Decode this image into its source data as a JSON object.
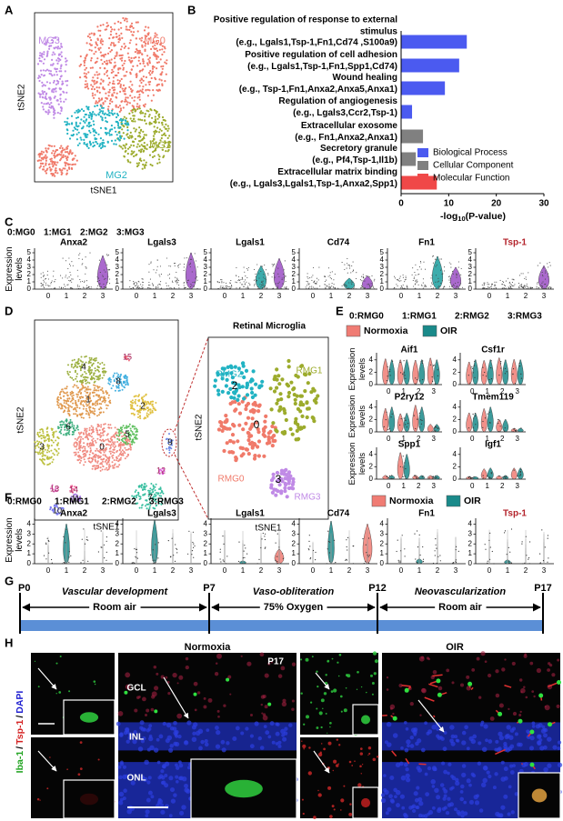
{
  "panel_labels": [
    "A",
    "B",
    "C",
    "D",
    "E",
    "F",
    "G",
    "H"
  ],
  "panel_a": {
    "clusters": [
      "MG0",
      "MG1",
      "MG2",
      "MG3"
    ],
    "colors": [
      "#f07a6a",
      "#9cab2c",
      "#22b3c3",
      "#c08ae6"
    ],
    "x_label": "tSNE1",
    "y_label": "tSNE2"
  },
  "panel_b": {
    "chart_data": {
      "type": "bar",
      "orientation": "horizontal",
      "categories": [
        "Positive regulation of response to external stimulus",
        "Positive regulation of cell adhesion",
        "Wound healing",
        "Regulation of angiogenesis",
        "Extracellular exosome",
        "Secretory granule",
        "Extracellular matrix binding"
      ],
      "examples": [
        "(e.g., Lgals1,Tsp-1,Fn1,Cd74 ,S100a9)",
        "(e.g., Lgals1,Tsp-1,Fn1,Spp1,Cd74)",
        "(e.g., Tsp-1,Fn1,Anxa2,Anxa5,Anxa1)",
        "(e.g., Lgals3,Ccr2,Tsp-1)",
        "(e.g., Fn1,Anxa2,Anxa1)",
        "(e.g., Pf4,Tsp-1,Il1b)",
        "(e.g., Lgals3,Lgals1,Tsp-1,Anxa2,Spp1)"
      ],
      "values": [
        13.8,
        12.2,
        9.2,
        2.3,
        4.6,
        3.1,
        7.5
      ],
      "colors": [
        "#4b5af0",
        "#4b5af0",
        "#4b5af0",
        "#4b5af0",
        "#808080",
        "#808080",
        "#f04848"
      ],
      "xlim": [
        0,
        30
      ],
      "xticks": [
        0,
        10,
        20,
        30
      ],
      "x_label": [
        "-log",
        "10",
        "(P-value)"
      ],
      "legend": [
        {
          "name": "Biological Process",
          "color": "#4b5af0"
        },
        {
          "name": "Cellular Component",
          "color": "#808080"
        },
        {
          "name": "Molecular Function",
          "color": "#f04848"
        }
      ]
    }
  },
  "panel_c": {
    "cluster_key": [
      "0:MG0",
      "1:MG1",
      "2:MG2",
      "3:MG3"
    ],
    "y_label": [
      "Expression",
      "levels"
    ],
    "genes": [
      "Anxa2",
      "Lgals3",
      "Lgals1",
      "Cd74",
      "Fn1",
      "Tsp-1"
    ],
    "gene_colors": [
      "#000",
      "#000",
      "#000",
      "#000",
      "#000",
      "#b3222a"
    ],
    "groups": [
      "0",
      "1",
      "2",
      "3"
    ],
    "ylim": [
      0,
      5.5
    ],
    "yticks": [
      0,
      1,
      2,
      3,
      4,
      5
    ]
  },
  "panel_d": {
    "clusters": [
      "0",
      "1",
      "2",
      "3",
      "4",
      "5",
      "6",
      "7",
      "8",
      "9",
      "10",
      "11",
      "12",
      "13",
      "14",
      "15"
    ],
    "x_label": "tSNE1",
    "y_label": "tSNE2",
    "zoom_title": "Retinal Microglia",
    "zoom_clusters": [
      "RMG0",
      "RMG1",
      "RMG2",
      "RMG3"
    ],
    "zoom_colors": [
      "#f07a6a",
      "#9cab2c",
      "#22b3c3",
      "#c08ae6"
    ],
    "zoom_numbers": [
      "0",
      "2",
      "3"
    ]
  },
  "panel_e": {
    "cluster_key": [
      "0:RMG0",
      "1:RMG1",
      "2:RMG2",
      "3:RMG3"
    ],
    "conditions": [
      {
        "name": "Normoxia",
        "color": "#f07c74"
      },
      {
        "name": "OIR",
        "color": "#1a8a8a"
      }
    ],
    "y_label": [
      "Expression",
      "levels"
    ],
    "genes": [
      "Aif1",
      "Csf1r",
      "P2ry12",
      "Tmem119",
      "Spp1",
      "Igf1"
    ],
    "groups": [
      "0",
      "1",
      "2",
      "3"
    ],
    "ylim": [
      0,
      5
    ],
    "yticks": [
      0,
      2,
      4
    ]
  },
  "panel_f": {
    "cluster_key": [
      "0:RMG0",
      "1:RMG1",
      "2:RMG2",
      "3:RMG3"
    ],
    "conditions": [
      {
        "name": "Normoxia",
        "color": "#f07c74"
      },
      {
        "name": "OIR",
        "color": "#1a8a8a"
      }
    ],
    "y_label": [
      "Expression",
      "levels"
    ],
    "genes": [
      "Anxa2",
      "Lgals3",
      "Lgals1",
      "Cd74",
      "Fn1",
      "Tsp-1"
    ],
    "gene_colors": [
      "#000",
      "#000",
      "#000",
      "#000",
      "#000",
      "#b3222a"
    ],
    "groups": [
      "0",
      "1",
      "2",
      "3"
    ],
    "ylim": [
      0,
      4.5
    ],
    "yticks": [
      0,
      1,
      2,
      3,
      4
    ]
  },
  "panel_g": {
    "timepoints": [
      "P0",
      "P7",
      "P12",
      "P17"
    ],
    "phases": [
      "Vascular development",
      "Vaso-obliteration",
      "Neovascularization"
    ],
    "conditions": [
      "Room air",
      "75% Oxygen",
      "Room air"
    ]
  },
  "panel_h": {
    "groups": [
      "Normoxia",
      "OIR"
    ],
    "age": "P17",
    "layers": [
      "GCL",
      "INL",
      "ONL"
    ],
    "stain": [
      "Iba-1",
      "/",
      "Tsp-1",
      "/",
      "DAPI"
    ],
    "stain_colors": [
      "#1fa31f",
      "#000000",
      "#d42020",
      "#000000",
      "#2020d0"
    ]
  }
}
